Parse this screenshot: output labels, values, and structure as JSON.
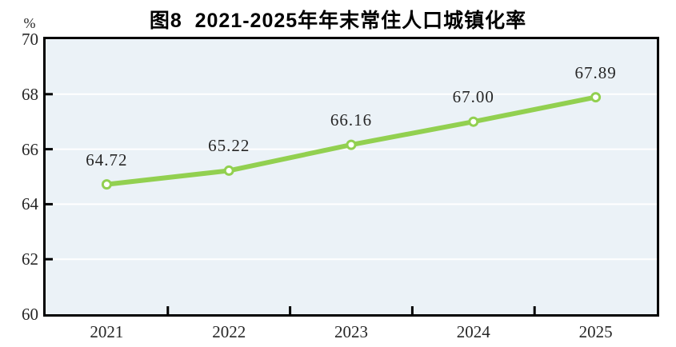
{
  "title": "图8  2021-2025年年末常住人口城镇化率",
  "y_axis_unit": "%",
  "chart_data": {
    "type": "line",
    "title": "图8  2021-2025年年末常住人口城镇化率",
    "categories": [
      "2021",
      "2022",
      "2023",
      "2024",
      "2025"
    ],
    "series": [
      {
        "name": "年末常住人口城镇化率",
        "values": [
          64.72,
          65.22,
          66.16,
          67.0,
          67.89
        ],
        "value_labels": [
          "64.72",
          "65.22",
          "66.16",
          "67.00",
          "67.89"
        ]
      }
    ],
    "xlabel": "",
    "ylabel": "%",
    "ylim": [
      60,
      70
    ],
    "yticks": [
      60,
      62,
      64,
      66,
      68,
      70
    ],
    "grid": "horizontal",
    "legend": "none",
    "colors": {
      "line": "#92d050",
      "marker_fill": "#ffffff",
      "marker_stroke": "#92d050",
      "plot_background": "#ebf2f7",
      "gridline": "#ffffff",
      "axis": "#000000",
      "text": "#262626"
    }
  }
}
